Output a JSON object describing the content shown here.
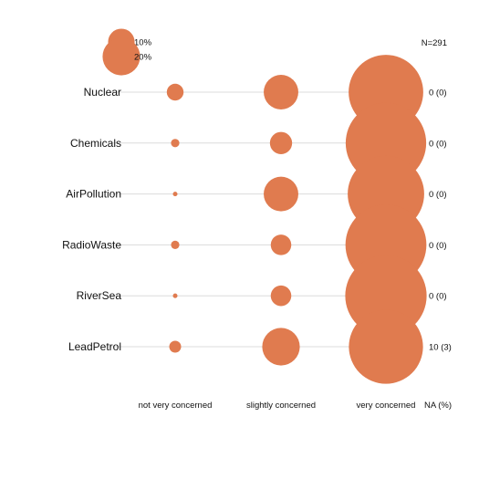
{
  "chart_data": {
    "type": "scatter",
    "description_type": "likert-bubble",
    "sample_size_label": "N=291",
    "na_header": "NA (%)",
    "categories": [
      "not very concerned",
      "slightly concerned",
      "very concerned"
    ],
    "items": [
      "Nuclear",
      "Chemicals",
      "AirPollution",
      "RadioWaste",
      "RiverSea",
      "LeadPetrol"
    ],
    "values_percent": [
      [
        4,
        17,
        79
      ],
      [
        1,
        7,
        92
      ],
      [
        0.3,
        17,
        83
      ],
      [
        1,
        6,
        93
      ],
      [
        0.3,
        6,
        94
      ],
      [
        2,
        20,
        78
      ]
    ],
    "na_labels": [
      "0 (0)",
      "0 (0)",
      "0 (0)",
      "0 (0)",
      "0 (0)",
      "10 (3)"
    ],
    "legend": [
      {
        "label": "10%",
        "value": 10
      },
      {
        "label": "20%",
        "value": 20
      }
    ],
    "bubble_color": "#e07b4f",
    "grid": true,
    "legend_position": "top-left"
  }
}
